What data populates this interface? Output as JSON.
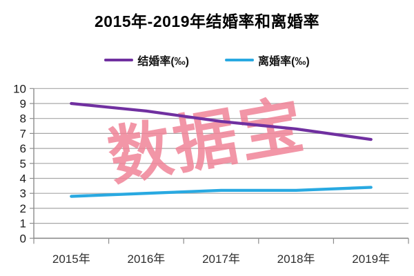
{
  "title": "2015年-2019年结婚率和离婚率",
  "watermark": {
    "text": "数据宝",
    "color": "#F08498"
  },
  "chart_data": {
    "type": "line",
    "title": "2015年-2019年结婚率和离婚率",
    "categories": [
      "2015年",
      "2016年",
      "2017年",
      "2018年",
      "2019年"
    ],
    "series": [
      {
        "name": "结婚率(‰)",
        "color": "#7030A0",
        "values": [
          9.0,
          8.5,
          7.8,
          7.3,
          6.6
        ]
      },
      {
        "name": "离婚率(‰)",
        "color": "#29A9E1",
        "values": [
          2.8,
          3.0,
          3.2,
          3.2,
          3.4
        ]
      }
    ],
    "xlabel": "",
    "ylabel": "",
    "ylim": [
      0,
      10
    ],
    "yticks": [
      0,
      1,
      2,
      3,
      4,
      5,
      6,
      7,
      8,
      9,
      10
    ],
    "grid": true,
    "legend_position": "top"
  },
  "styles": {
    "grid_color": "#A6A6A6",
    "axis_color": "#8C8C8C",
    "y_label_color": "#1A1A1A",
    "x_label_color": "#2E2E2E",
    "watermark_opacity": 0.85
  }
}
